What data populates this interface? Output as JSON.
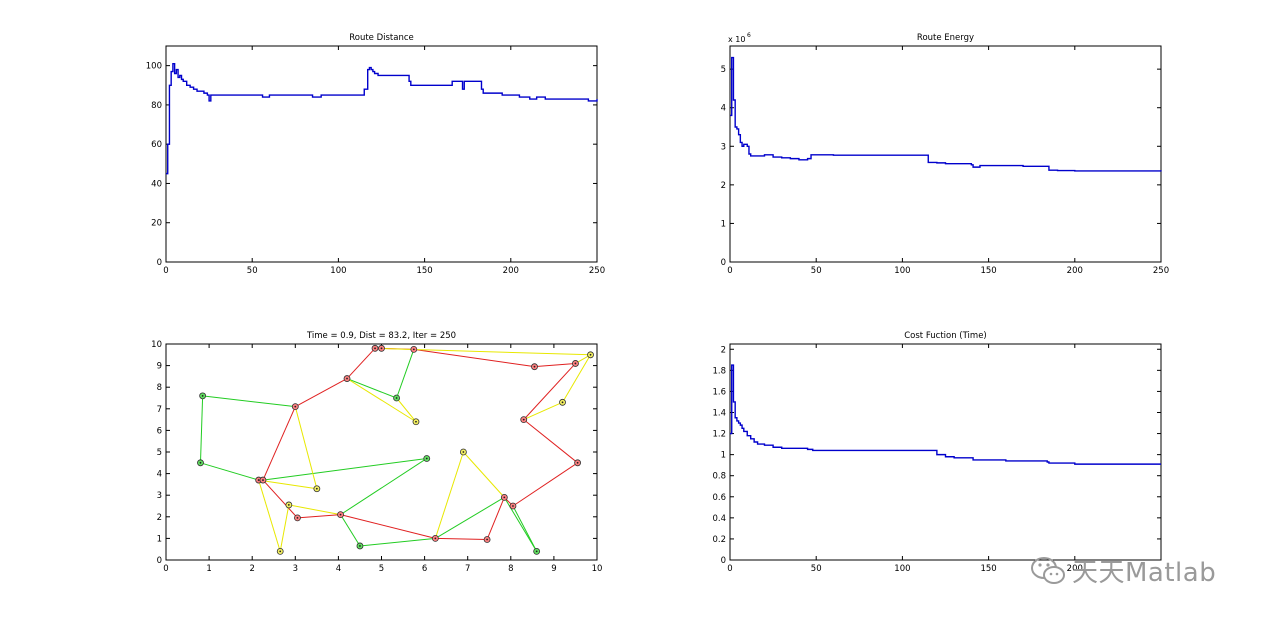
{
  "watermark": {
    "text": "天天Matlab",
    "icon": "wechat-icon"
  },
  "colors": {
    "line": "#0000cc",
    "axis": "#000000",
    "edge_red": "#e02020",
    "edge_green": "#22cc22",
    "edge_yellow": "#e8e800",
    "node_red": "#ff8080",
    "node_green": "#60e060",
    "node_yellow": "#f4f060"
  },
  "chart_data": [
    {
      "id": "distance",
      "type": "line",
      "title": "Route Distance",
      "xlim": [
        0,
        250
      ],
      "ylim": [
        0,
        110
      ],
      "xticks": [
        0,
        50,
        100,
        150,
        200,
        250
      ],
      "yticks": [
        0,
        20,
        40,
        60,
        80,
        100
      ],
      "grid": false,
      "x": [
        0,
        1,
        2,
        3,
        4,
        5,
        6,
        7,
        8,
        9,
        10,
        12,
        14,
        16,
        18,
        20,
        22,
        24,
        25,
        26,
        28,
        30,
        40,
        55,
        56,
        60,
        70,
        80,
        85,
        90,
        100,
        110,
        114,
        115,
        116,
        117,
        118,
        119,
        120,
        121,
        123,
        125,
        130,
        140,
        141,
        142,
        150,
        160,
        165,
        166,
        170,
        172,
        173,
        175,
        180,
        183,
        184,
        190,
        195,
        200,
        205,
        210,
        211,
        215,
        220,
        225,
        230,
        240,
        245,
        250
      ],
      "y": [
        45,
        60,
        90,
        97,
        101,
        96,
        98,
        94,
        95,
        93,
        92,
        90,
        89,
        88,
        87,
        87,
        86,
        85,
        82,
        85,
        85,
        85,
        85,
        85,
        84,
        85,
        85,
        85,
        84,
        85,
        85,
        85,
        85,
        88,
        88,
        98,
        99,
        98,
        97,
        96,
        95,
        95,
        95,
        95,
        92,
        90,
        90,
        90,
        90,
        92,
        92,
        88,
        92,
        92,
        92,
        88,
        86,
        86,
        85,
        85,
        84,
        84,
        83,
        84,
        83,
        83,
        83,
        83,
        82,
        83
      ],
      "series": [
        {
          "values": "distance"
        }
      ]
    },
    {
      "id": "energy",
      "type": "line",
      "title": "Route Energy",
      "exponent_label": "x 10",
      "exponent": "6",
      "xlim": [
        0,
        250
      ],
      "ylim": [
        0,
        5.6
      ],
      "xticks": [
        0,
        50,
        100,
        150,
        200,
        250
      ],
      "yticks": [
        0,
        1,
        2,
        3,
        4,
        5
      ],
      "grid": false,
      "x": [
        0,
        1,
        2,
        3,
        4,
        5,
        6,
        7,
        8,
        10,
        11,
        12,
        15,
        20,
        25,
        30,
        35,
        40,
        45,
        47,
        48,
        60,
        80,
        100,
        114,
        115,
        120,
        125,
        130,
        140,
        141,
        145,
        150,
        160,
        170,
        184,
        185,
        190,
        200,
        210,
        220,
        230,
        240,
        250
      ],
      "y": [
        3.8,
        5.3,
        4.2,
        3.5,
        3.45,
        3.3,
        3.1,
        3.0,
        3.05,
        3.0,
        2.8,
        2.75,
        2.75,
        2.78,
        2.72,
        2.7,
        2.68,
        2.65,
        2.68,
        2.78,
        2.78,
        2.77,
        2.77,
        2.77,
        2.77,
        2.58,
        2.57,
        2.55,
        2.55,
        2.52,
        2.46,
        2.5,
        2.5,
        2.5,
        2.48,
        2.48,
        2.38,
        2.37,
        2.36,
        2.36,
        2.36,
        2.36,
        2.36,
        2.35
      ],
      "series": [
        {
          "values": "energy"
        }
      ]
    },
    {
      "id": "route",
      "type": "scatter",
      "title": "Time = 0.9, Dist = 83.2, Iter = 250",
      "xlim": [
        0,
        10
      ],
      "ylim": [
        0,
        10
      ],
      "xticks": [
        0,
        1,
        2,
        3,
        4,
        5,
        6,
        7,
        8,
        9,
        10
      ],
      "yticks": [
        0,
        1,
        2,
        3,
        4,
        5,
        6,
        7,
        8,
        9,
        10
      ],
      "grid": false,
      "nodes": [
        {
          "x": 0.85,
          "y": 7.6,
          "c": "green"
        },
        {
          "x": 0.8,
          "y": 4.5,
          "c": "green"
        },
        {
          "x": 2.15,
          "y": 3.7,
          "c": "red"
        },
        {
          "x": 2.25,
          "y": 3.7,
          "c": "red"
        },
        {
          "x": 3.0,
          "y": 7.1,
          "c": "red"
        },
        {
          "x": 3.5,
          "y": 3.3,
          "c": "yellow"
        },
        {
          "x": 2.65,
          "y": 0.4,
          "c": "yellow"
        },
        {
          "x": 2.85,
          "y": 2.55,
          "c": "yellow"
        },
        {
          "x": 3.05,
          "y": 1.95,
          "c": "red"
        },
        {
          "x": 4.05,
          "y": 2.1,
          "c": "red"
        },
        {
          "x": 4.5,
          "y": 0.65,
          "c": "green"
        },
        {
          "x": 6.25,
          "y": 1.0,
          "c": "red"
        },
        {
          "x": 7.45,
          "y": 0.95,
          "c": "red"
        },
        {
          "x": 6.05,
          "y": 4.7,
          "c": "green"
        },
        {
          "x": 6.9,
          "y": 5.0,
          "c": "yellow"
        },
        {
          "x": 7.85,
          "y": 2.9,
          "c": "red"
        },
        {
          "x": 8.05,
          "y": 2.5,
          "c": "red"
        },
        {
          "x": 8.6,
          "y": 0.4,
          "c": "green"
        },
        {
          "x": 9.55,
          "y": 4.5,
          "c": "red"
        },
        {
          "x": 8.3,
          "y": 6.5,
          "c": "red"
        },
        {
          "x": 9.2,
          "y": 7.3,
          "c": "yellow"
        },
        {
          "x": 9.5,
          "y": 9.1,
          "c": "red"
        },
        {
          "x": 9.85,
          "y": 9.5,
          "c": "yellow"
        },
        {
          "x": 8.55,
          "y": 8.95,
          "c": "red"
        },
        {
          "x": 5.75,
          "y": 9.75,
          "c": "red"
        },
        {
          "x": 5.0,
          "y": 9.8,
          "c": "red"
        },
        {
          "x": 4.85,
          "y": 9.8,
          "c": "red"
        },
        {
          "x": 4.2,
          "y": 8.4,
          "c": "red"
        },
        {
          "x": 5.35,
          "y": 7.5,
          "c": "green"
        },
        {
          "x": 5.8,
          "y": 6.4,
          "c": "yellow"
        }
      ],
      "edges": [
        {
          "a": 0,
          "b": 4,
          "c": "green"
        },
        {
          "a": 0,
          "b": 1,
          "c": "green"
        },
        {
          "a": 1,
          "b": 2,
          "c": "green"
        },
        {
          "a": 3,
          "b": 13,
          "c": "green"
        },
        {
          "a": 9,
          "b": 13,
          "c": "green"
        },
        {
          "a": 9,
          "b": 10,
          "c": "green"
        },
        {
          "a": 10,
          "b": 11,
          "c": "green"
        },
        {
          "a": 11,
          "b": 15,
          "c": "green"
        },
        {
          "a": 15,
          "b": 17,
          "c": "green"
        },
        {
          "a": 27,
          "b": 28,
          "c": "green"
        },
        {
          "a": 28,
          "b": 24,
          "c": "green"
        },
        {
          "a": 4,
          "b": 3,
          "c": "red"
        },
        {
          "a": 4,
          "b": 27,
          "c": "red"
        },
        {
          "a": 27,
          "b": 26,
          "c": "red"
        },
        {
          "a": 26,
          "b": 25,
          "c": "red"
        },
        {
          "a": 25,
          "b": 24,
          "c": "red"
        },
        {
          "a": 24,
          "b": 23,
          "c": "red"
        },
        {
          "a": 23,
          "b": 21,
          "c": "red"
        },
        {
          "a": 21,
          "b": 19,
          "c": "red"
        },
        {
          "a": 19,
          "b": 18,
          "c": "red"
        },
        {
          "a": 18,
          "b": 16,
          "c": "red"
        },
        {
          "a": 16,
          "b": 15,
          "c": "red"
        },
        {
          "a": 15,
          "b": 12,
          "c": "red"
        },
        {
          "a": 12,
          "b": 11,
          "c": "red"
        },
        {
          "a": 11,
          "b": 9,
          "c": "red"
        },
        {
          "a": 9,
          "b": 8,
          "c": "red"
        },
        {
          "a": 8,
          "b": 3,
          "c": "red"
        },
        {
          "a": 2,
          "b": 6,
          "c": "yellow"
        },
        {
          "a": 6,
          "b": 7,
          "c": "yellow"
        },
        {
          "a": 7,
          "b": 9,
          "c": "yellow"
        },
        {
          "a": 2,
          "b": 5,
          "c": "yellow"
        },
        {
          "a": 5,
          "b": 4,
          "c": "yellow"
        },
        {
          "a": 27,
          "b": 29,
          "c": "yellow"
        },
        {
          "a": 29,
          "b": 28,
          "c": "yellow"
        },
        {
          "a": 11,
          "b": 14,
          "c": "yellow"
        },
        {
          "a": 14,
          "b": 15,
          "c": "yellow"
        },
        {
          "a": 19,
          "b": 20,
          "c": "yellow"
        },
        {
          "a": 20,
          "b": 22,
          "c": "yellow"
        },
        {
          "a": 22,
          "b": 21,
          "c": "yellow"
        },
        {
          "a": 26,
          "b": 22,
          "c": "yellow"
        },
        {
          "a": 16,
          "b": 17,
          "c": "green"
        }
      ]
    },
    {
      "id": "cost",
      "type": "line",
      "title": "Cost Fuction (Time)",
      "xlim": [
        0,
        250
      ],
      "ylim": [
        0,
        2.05
      ],
      "xticks": [
        0,
        50,
        100,
        150,
        200
      ],
      "yticks": [
        0,
        0.2,
        0.4,
        0.6,
        0.8,
        1,
        1.2,
        1.4,
        1.6,
        1.8,
        2
      ],
      "grid": false,
      "x": [
        0,
        1,
        2,
        3,
        4,
        5,
        6,
        7,
        8,
        10,
        12,
        14,
        16,
        20,
        25,
        30,
        40,
        45,
        47,
        48,
        60,
        80,
        100,
        115,
        120,
        125,
        130,
        140,
        141,
        150,
        160,
        170,
        184,
        185,
        190,
        200,
        210,
        220,
        230,
        240,
        250
      ],
      "y": [
        1.2,
        1.85,
        1.5,
        1.35,
        1.32,
        1.3,
        1.28,
        1.25,
        1.22,
        1.18,
        1.15,
        1.12,
        1.1,
        1.09,
        1.07,
        1.06,
        1.06,
        1.05,
        1.05,
        1.04,
        1.04,
        1.04,
        1.04,
        1.04,
        1.0,
        0.98,
        0.97,
        0.97,
        0.95,
        0.95,
        0.94,
        0.94,
        0.93,
        0.92,
        0.92,
        0.91,
        0.91,
        0.91,
        0.91,
        0.91,
        0.91
      ],
      "series": [
        {
          "values": "cost"
        }
      ]
    }
  ]
}
